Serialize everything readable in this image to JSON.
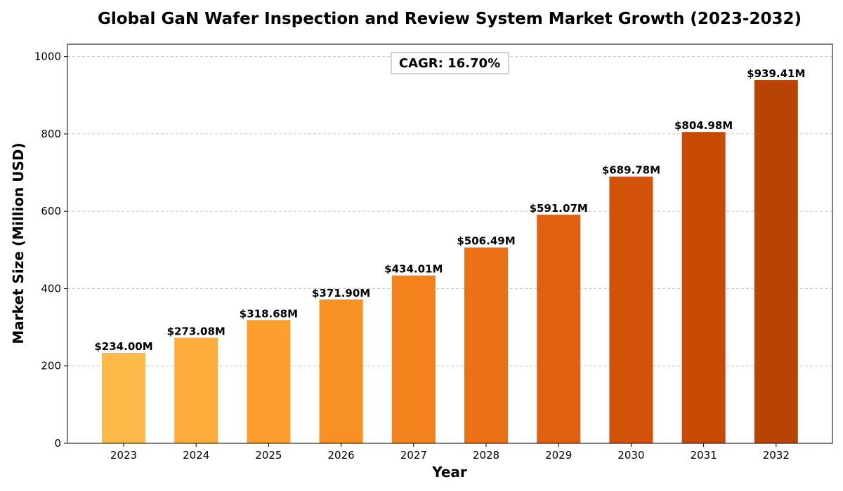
{
  "chart_data": {
    "type": "bar",
    "title": "Global GaN Wafer Inspection and Review System Market Growth (2023-2032)",
    "xlabel": "Year",
    "ylabel": "Market Size (Million USD)",
    "categories": [
      "2023",
      "2024",
      "2025",
      "2026",
      "2027",
      "2028",
      "2029",
      "2030",
      "2031",
      "2032"
    ],
    "values": [
      234.0,
      273.08,
      318.68,
      371.9,
      434.01,
      506.49,
      591.07,
      689.78,
      804.98,
      939.41
    ],
    "value_labels": [
      "$234.00M",
      "$273.08M",
      "$318.68M",
      "$371.90M",
      "$434.01M",
      "$506.49M",
      "$591.07M",
      "$689.78M",
      "$804.98M",
      "$939.41M"
    ],
    "colors": [
      "#FFBB4A",
      "#FEAD3C",
      "#FD9F2E",
      "#F89123",
      "#F3821D",
      "#EB7016",
      "#DF6010",
      "#D2520A",
      "#C64A04",
      "#B74304"
    ],
    "ylim": [
      0,
      1032
    ],
    "yticks": [
      0,
      200,
      400,
      600,
      800,
      1000
    ],
    "ytick_labels": [
      "0",
      "200",
      "400",
      "600",
      "800",
      "1000"
    ],
    "grid": true,
    "annotation": "CAGR: 16.70%"
  }
}
